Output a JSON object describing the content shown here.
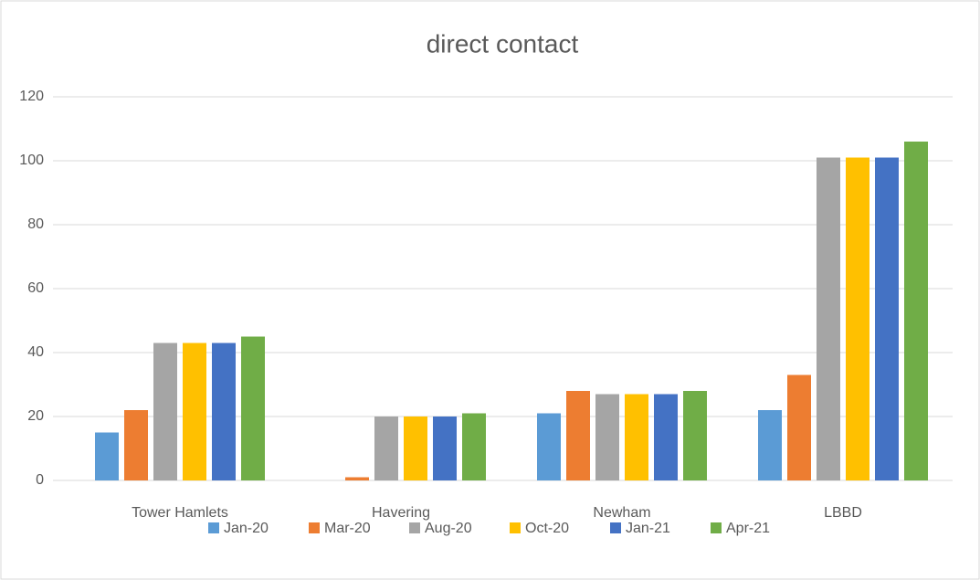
{
  "chart_data": {
    "type": "bar",
    "title": "direct contact",
    "categories": [
      "Tower Hamlets",
      "Havering",
      "Newham",
      "LBBD"
    ],
    "series": [
      {
        "name": "Jan-20",
        "color": "#5b9bd5",
        "values": [
          15,
          0,
          21,
          22
        ]
      },
      {
        "name": "Mar-20",
        "color": "#ed7d31",
        "values": [
          22,
          1,
          28,
          33
        ]
      },
      {
        "name": "Aug-20",
        "color": "#a5a5a5",
        "values": [
          43,
          20,
          27,
          101
        ]
      },
      {
        "name": "Oct-20",
        "color": "#ffc000",
        "values": [
          43,
          20,
          27,
          101
        ]
      },
      {
        "name": "Jan-21",
        "color": "#4472c4",
        "values": [
          43,
          20,
          27,
          101
        ]
      },
      {
        "name": "Apr-21",
        "color": "#70ad47",
        "values": [
          45,
          21,
          28,
          106
        ]
      }
    ],
    "ylim": [
      0,
      120
    ],
    "yticks": [
      0,
      20,
      40,
      60,
      80,
      100,
      120
    ],
    "grid": true,
    "legend": "bottom"
  }
}
